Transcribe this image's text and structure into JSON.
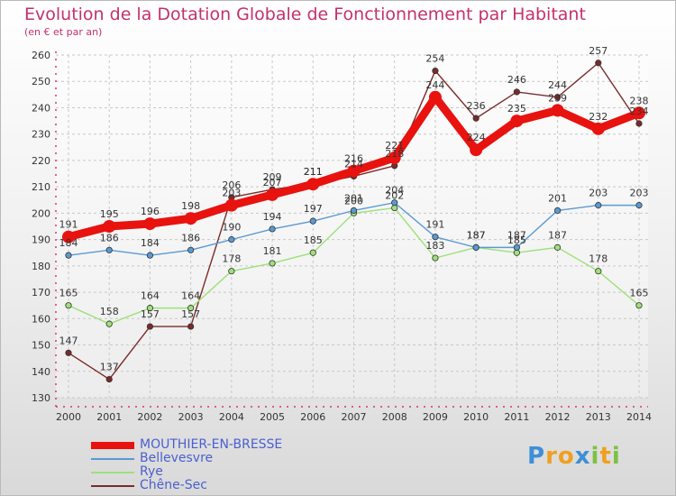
{
  "header": {
    "title": "Evolution de la Dotation Globale de Fonctionnement par Habitant",
    "subtitle": "(en € et par an)"
  },
  "logo": {
    "text": "Proxiti",
    "letters": [
      "P",
      "r",
      "o",
      "x",
      "i",
      "t",
      "i"
    ],
    "colors": [
      "#3d8fd6",
      "#f0a020",
      "#f0a020",
      "#3d8fd6",
      "#7cc242",
      "#f0a020",
      "#7cc242"
    ]
  },
  "chart_data": {
    "type": "line",
    "title": "Evolution de la Dotation Globale de Fonctionnement par Habitant",
    "subtitle": "(en € et par an)",
    "x": [
      "2000",
      "2001",
      "2002",
      "2003",
      "2004",
      "2005",
      "2006",
      "2007",
      "2008",
      "2009",
      "2010",
      "2011",
      "2012",
      "2013",
      "2014"
    ],
    "ylim": [
      130,
      260
    ],
    "yticks": [
      130,
      140,
      150,
      160,
      170,
      180,
      190,
      200,
      210,
      220,
      230,
      240,
      250,
      260
    ],
    "grid": true,
    "legend_position": "bottom-left",
    "series": [
      {
        "name": "MOUTHIER-EN-BRESSE",
        "color": "#e8120f",
        "highlight": true,
        "values": [
          191,
          195,
          196,
          198,
          203,
          207,
          211,
          216,
          221,
          244,
          224,
          235,
          239,
          232,
          238
        ],
        "labels": [
          "191",
          "195",
          "196",
          "198",
          "203",
          "207",
          "211",
          "216",
          "221",
          "244",
          "224",
          "235",
          "239",
          "232",
          "238"
        ]
      },
      {
        "name": "Bellevesvre",
        "color": "#5a9ad2",
        "values": [
          184,
          186,
          184,
          186,
          190,
          194,
          197,
          201,
          204,
          191,
          187,
          187,
          201,
          203,
          203
        ],
        "labels": [
          "184",
          "186",
          "184",
          "186",
          "190",
          "194",
          "197",
          "201",
          "204",
          "191",
          "187",
          "187",
          "201",
          "203",
          "203"
        ]
      },
      {
        "name": "Rye",
        "color": "#9ee07a",
        "values": [
          165,
          158,
          164,
          164,
          178,
          181,
          185,
          200,
          202,
          183,
          187,
          185,
          187,
          178,
          165
        ],
        "labels": [
          "165",
          "158",
          "164",
          "164",
          "178",
          "181",
          "185",
          "200",
          "202",
          "183",
          "187",
          "185",
          "187",
          "178",
          "165"
        ]
      },
      {
        "name": "Chêne-Sec",
        "color": "#7a2a2a",
        "values": [
          147,
          137,
          157,
          157,
          206,
          209,
          211,
          214,
          218,
          254,
          236,
          246,
          244,
          257,
          234
        ],
        "labels": [
          "147",
          "137",
          "157",
          "157",
          "206",
          "209",
          "211",
          "214",
          "218",
          "254",
          "236",
          "246",
          "244",
          "257",
          "234"
        ]
      }
    ]
  }
}
